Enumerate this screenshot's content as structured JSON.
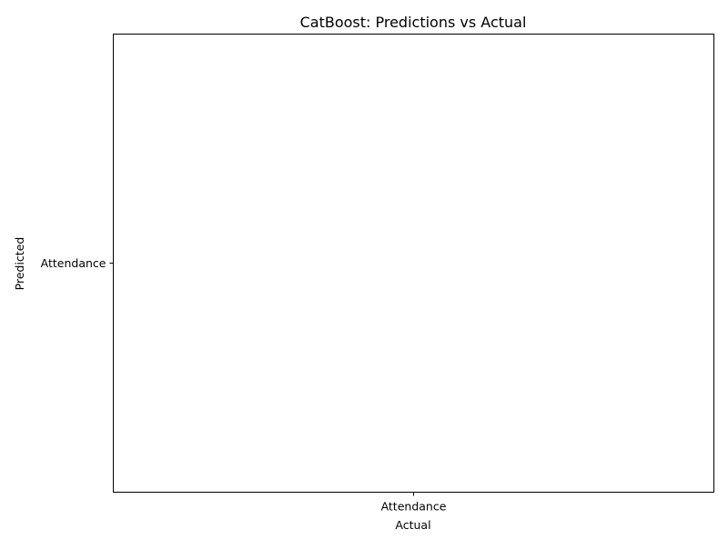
{
  "chart_data": {
    "type": "scatter",
    "title": "CatBoost: Predictions vs Actual",
    "xlabel": "Actual",
    "ylabel": "Predicted",
    "x_ticks": [
      "Attendance"
    ],
    "y_ticks": [
      "Attendance"
    ],
    "series": [],
    "grid": false,
    "legend": "none"
  }
}
